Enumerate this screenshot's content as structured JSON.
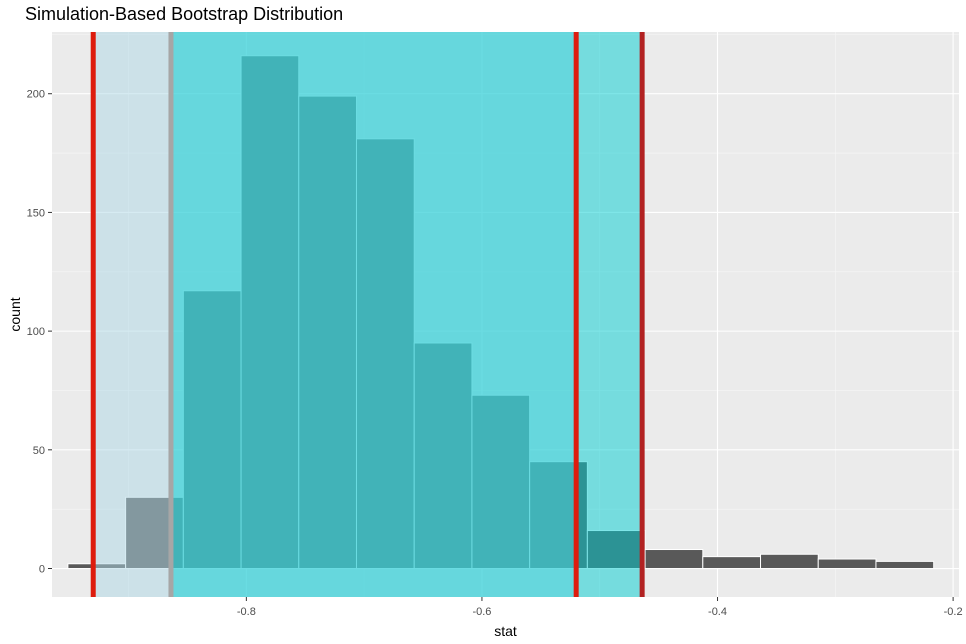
{
  "chart_data": {
    "type": "bar",
    "title": "Simulation-Based Bootstrap Distribution",
    "xlabel": "stat",
    "ylabel": "count",
    "xlim": [
      -0.965,
      -0.195
    ],
    "ylim": [
      -12,
      226
    ],
    "x_ticks": [
      -0.8,
      -0.6,
      -0.4,
      -0.2
    ],
    "x_tick_labels": [
      "-0.8",
      "-0.6",
      "-0.4",
      "-0.2"
    ],
    "y_ticks": [
      0,
      50,
      100,
      150,
      200
    ],
    "y_tick_labels": [
      "0",
      "50",
      "100",
      "150",
      "200"
    ],
    "grid": true,
    "bin_width": 0.049,
    "bins": [
      {
        "x": -0.927,
        "count": 2
      },
      {
        "x": -0.878,
        "count": 30
      },
      {
        "x": -0.829,
        "count": 117
      },
      {
        "x": -0.78,
        "count": 216
      },
      {
        "x": -0.731,
        "count": 199
      },
      {
        "x": -0.682,
        "count": 181
      },
      {
        "x": -0.633,
        "count": 95
      },
      {
        "x": -0.584,
        "count": 73
      },
      {
        "x": -0.535,
        "count": 45
      },
      {
        "x": -0.486,
        "count": 16
      },
      {
        "x": -0.437,
        "count": 8
      },
      {
        "x": -0.388,
        "count": 5
      },
      {
        "x": -0.339,
        "count": 6
      },
      {
        "x": -0.29,
        "count": 4
      },
      {
        "x": -0.241,
        "count": 3
      }
    ],
    "shaded_intervals": [
      {
        "from": -0.93,
        "to": -0.52,
        "color": "#ADD8E6"
      },
      {
        "from": -0.864,
        "to": -0.464,
        "color": "#00CED1"
      }
    ],
    "vertical_lines": [
      {
        "x": -0.93,
        "color": "#DD1C0E"
      },
      {
        "x": -0.52,
        "color": "#DD1C0E"
      },
      {
        "x": -0.864,
        "color": "#A6A6A6"
      },
      {
        "x": -0.464,
        "color": "#B22222"
      }
    ],
    "colors": {
      "panel_background": "#EBEBEB",
      "grid_major": "#FFFFFF",
      "bar_fill": "#595959",
      "bar_outline": "#FFFFFF"
    }
  }
}
